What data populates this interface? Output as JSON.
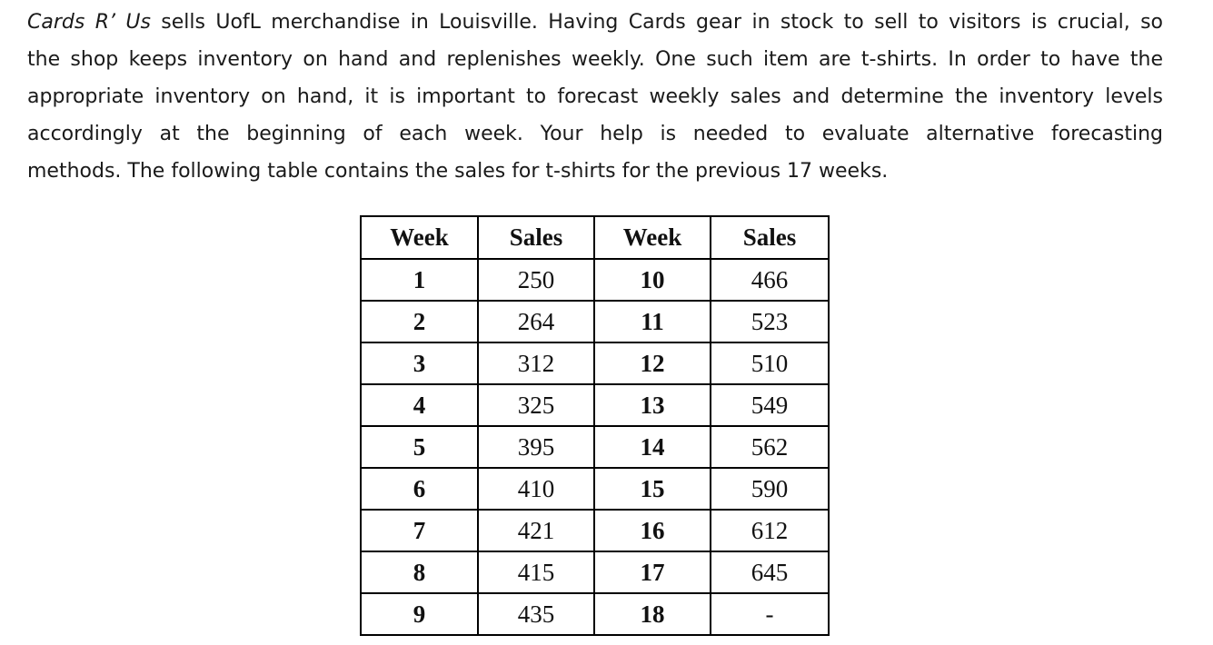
{
  "intro": {
    "company": "Cards R’ Us",
    "lines": [
      " sells UofL merchandise in Louisville.  Having Cards gear in stock to sell to visitors is crucial, so",
      "the shop keeps inventory on hand and replenishes weekly.  One such item are t-shirts.  In order to have the",
      "appropriate inventory on hand, it is important to forecast weekly sales and determine the inventory levels",
      "accordingly at the beginning of each week.  Your help is needed to evaluate alternative forecasting",
      "methods. The following table contains the sales for t-shirts for the previous 17 weeks."
    ]
  },
  "table": {
    "headers": [
      "Week",
      "Sales",
      "Week",
      "Sales"
    ],
    "rows": [
      [
        "1",
        "250",
        "10",
        "466"
      ],
      [
        "2",
        "264",
        "11",
        "523"
      ],
      [
        "3",
        "312",
        "12",
        "510"
      ],
      [
        "4",
        "325",
        "13",
        "549"
      ],
      [
        "5",
        "395",
        "14",
        "562"
      ],
      [
        "6",
        "410",
        "15",
        "590"
      ],
      [
        "7",
        "421",
        "16",
        "612"
      ],
      [
        "8",
        "415",
        "17",
        "645"
      ],
      [
        "9",
        "435",
        "18",
        "-"
      ]
    ]
  }
}
